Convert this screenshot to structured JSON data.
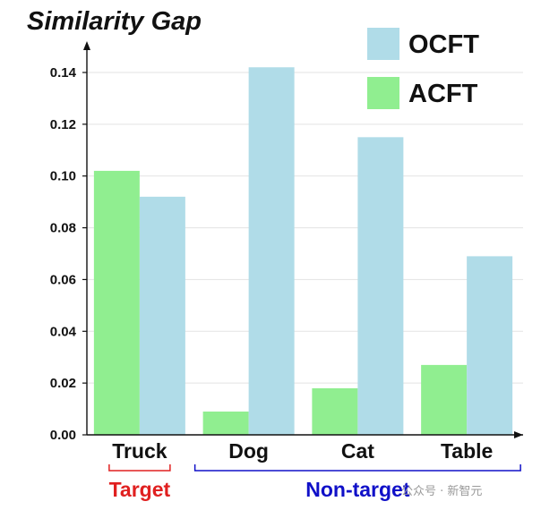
{
  "chart_data": {
    "type": "bar",
    "title": "Similarity Gap",
    "categories": [
      "Truck",
      "Dog",
      "Cat",
      "Table"
    ],
    "series": [
      {
        "name": "ACFT",
        "color": "#90ee90",
        "values": [
          0.102,
          0.009,
          0.018,
          0.027
        ]
      },
      {
        "name": "OCFT",
        "color": "#b0dce8",
        "values": [
          0.092,
          0.142,
          0.115,
          0.069
        ]
      }
    ],
    "ylim": [
      0,
      0.15
    ],
    "yticks": [
      "0.00",
      "0.02",
      "0.04",
      "0.06",
      "0.08",
      "0.10",
      "0.12",
      "0.14"
    ],
    "grid": true,
    "legend_position": "top-right",
    "legend_order": [
      "OCFT",
      "ACFT"
    ],
    "groups": [
      {
        "label": "Target",
        "color": "#e02020",
        "members": [
          "Truck"
        ]
      },
      {
        "label": "Non-target",
        "color": "#1010c8",
        "members": [
          "Dog",
          "Cat",
          "Table"
        ]
      }
    ]
  },
  "watermark": "公众号 · 新智元"
}
